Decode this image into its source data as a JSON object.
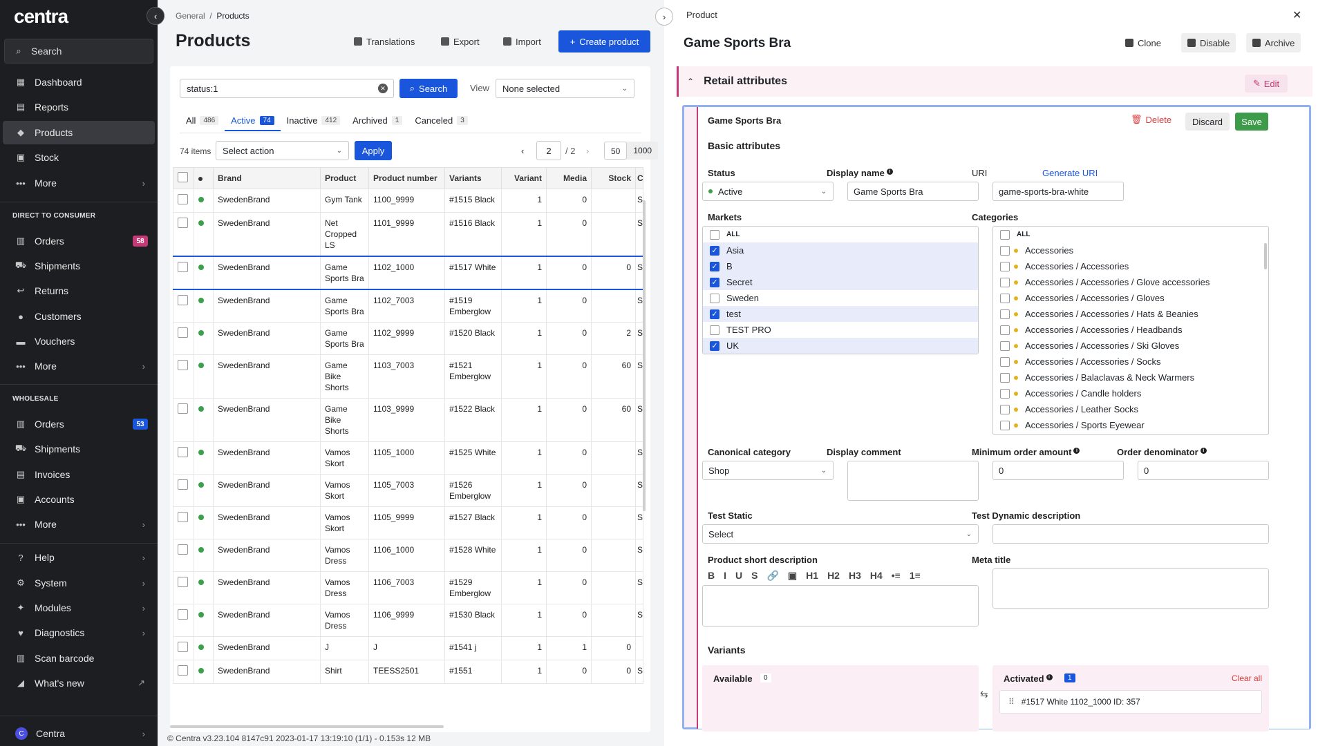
{
  "sidebar": {
    "logo": "centra",
    "search": "Search",
    "items": [
      {
        "label": "Dashboard",
        "icon": "dashboard-icon"
      },
      {
        "label": "Reports",
        "icon": "reports-icon"
      },
      {
        "label": "Products",
        "icon": "tag-icon"
      },
      {
        "label": "Stock",
        "icon": "box-icon"
      },
      {
        "label": "More",
        "icon": "ellipsis-icon"
      }
    ],
    "dtc_title": "DIRECT TO CONSUMER",
    "dtc_items": [
      {
        "label": "Orders",
        "badge": "58"
      },
      {
        "label": "Shipments"
      },
      {
        "label": "Returns"
      },
      {
        "label": "Customers"
      },
      {
        "label": "Vouchers"
      },
      {
        "label": "More"
      }
    ],
    "wholesale_title": "WHOLESALE",
    "wholesale_items": [
      {
        "label": "Orders",
        "badge": "53"
      },
      {
        "label": "Shipments"
      },
      {
        "label": "Invoices"
      },
      {
        "label": "Accounts"
      },
      {
        "label": "More"
      }
    ],
    "bottom_items": [
      {
        "label": "Help"
      },
      {
        "label": "System"
      },
      {
        "label": "Modules"
      },
      {
        "label": "Diagnostics"
      },
      {
        "label": "Scan barcode"
      },
      {
        "label": "What's new"
      }
    ],
    "account": {
      "initial": "C",
      "label": "Centra"
    },
    "colors": {
      "orders_badge": "#c33a77",
      "wholesale_badge": "#1a56db"
    }
  },
  "main": {
    "breadcrumb": {
      "parent": "General",
      "separator": "/",
      "current": "Products"
    },
    "title": "Products",
    "toolbar": {
      "translations": "Translations",
      "export": "Export",
      "import": "Import",
      "create": "Create product"
    },
    "search": {
      "value": "status:1",
      "button": "Search",
      "view_label": "View",
      "view_value": "None selected"
    },
    "tabs": [
      {
        "label": "All",
        "count": "486"
      },
      {
        "label": "Active",
        "count": "74"
      },
      {
        "label": "Inactive",
        "count": "412"
      },
      {
        "label": "Archived",
        "count": "1"
      },
      {
        "label": "Canceled",
        "count": "3"
      }
    ],
    "items_count": "74 items",
    "action_placeholder": "Select action",
    "apply": "Apply",
    "pagination": {
      "page": "2",
      "total": "/ 2"
    },
    "per_page": [
      "50",
      "1000"
    ],
    "columns": [
      "Brand",
      "Product",
      "Product number",
      "Variants",
      "Variant",
      "Media",
      "Stock",
      "C"
    ],
    "rows": [
      {
        "brand": "SwedenBrand",
        "product": "Gym Tank",
        "number": "1100_9999",
        "variants": "#1515 Black",
        "variant": "1",
        "media": "0",
        "stock": "",
        "c": "S"
      },
      {
        "brand": "SwedenBrand",
        "product": "Net Cropped LS",
        "number": "1101_9999",
        "variants": "#1516 Black",
        "variant": "1",
        "media": "0",
        "stock": "",
        "c": "S"
      },
      {
        "brand": "SwedenBrand",
        "product": "Game Sports Bra",
        "number": "1102_1000",
        "variants": "#1517 White",
        "variant": "1",
        "media": "0",
        "stock": "0",
        "c": "S"
      },
      {
        "brand": "SwedenBrand",
        "product": "Game Sports Bra",
        "number": "1102_7003",
        "variants": "#1519 Emberglow",
        "variant": "1",
        "media": "0",
        "stock": "",
        "c": "S"
      },
      {
        "brand": "SwedenBrand",
        "product": "Game Sports Bra",
        "number": "1102_9999",
        "variants": "#1520 Black",
        "variant": "1",
        "media": "0",
        "stock": "2",
        "c": "S"
      },
      {
        "brand": "SwedenBrand",
        "product": "Game Bike Shorts",
        "number": "1103_7003",
        "variants": "#1521 Emberglow",
        "variant": "1",
        "media": "0",
        "stock": "60",
        "c": "S"
      },
      {
        "brand": "SwedenBrand",
        "product": "Game Bike Shorts",
        "number": "1103_9999",
        "variants": "#1522 Black",
        "variant": "1",
        "media": "0",
        "stock": "60",
        "c": "S"
      },
      {
        "brand": "SwedenBrand",
        "product": "Vamos Skort",
        "number": "1105_1000",
        "variants": "#1525 White",
        "variant": "1",
        "media": "0",
        "stock": "",
        "c": "S"
      },
      {
        "brand": "SwedenBrand",
        "product": "Vamos Skort",
        "number": "1105_7003",
        "variants": "#1526 Emberglow",
        "variant": "1",
        "media": "0",
        "stock": "",
        "c": "S"
      },
      {
        "brand": "SwedenBrand",
        "product": "Vamos Skort",
        "number": "1105_9999",
        "variants": "#1527 Black",
        "variant": "1",
        "media": "0",
        "stock": "",
        "c": "S"
      },
      {
        "brand": "SwedenBrand",
        "product": "Vamos Dress",
        "number": "1106_1000",
        "variants": "#1528 White",
        "variant": "1",
        "media": "0",
        "stock": "",
        "c": "S"
      },
      {
        "brand": "SwedenBrand",
        "product": "Vamos Dress",
        "number": "1106_7003",
        "variants": "#1529 Emberglow",
        "variant": "1",
        "media": "0",
        "stock": "",
        "c": "S"
      },
      {
        "brand": "SwedenBrand",
        "product": "Vamos Dress",
        "number": "1106_9999",
        "variants": "#1530 Black",
        "variant": "1",
        "media": "0",
        "stock": "",
        "c": "S"
      },
      {
        "brand": "SwedenBrand",
        "product": "J",
        "number": "J",
        "variants": "#1541 j",
        "variant": "1",
        "media": "1",
        "stock": "0",
        "c": ""
      },
      {
        "brand": "SwedenBrand",
        "product": "Shirt",
        "number": "TEESS2501",
        "variants": "#1551",
        "variant": "1",
        "media": "0",
        "stock": "0",
        "c": "S"
      }
    ],
    "footer": "© Centra v3.23.104 8147c91 2023-01-17 13:19:10 (1/1) - 0.153s 12 MB"
  },
  "detail": {
    "header": "Product",
    "title": "Game Sports Bra",
    "actions": {
      "clone": "Clone",
      "disable": "Disable",
      "archive": "Archive"
    },
    "section": {
      "title": "Retail attributes",
      "edit": "Edit"
    },
    "form": {
      "name": "Game Sports Bra",
      "delete": "Delete",
      "discard": "Discard",
      "save": "Save",
      "basic_title": "Basic attributes",
      "status_label": "Status",
      "status_value": "Active",
      "display_name_label": "Display name",
      "display_name_value": "Game Sports Bra",
      "uri_label": "URI",
      "generate_uri": "Generate URI",
      "uri_value": "game-sports-bra-white",
      "markets_label": "Markets",
      "markets_all": "ALL",
      "markets": [
        {
          "label": "Asia",
          "checked": true
        },
        {
          "label": "B",
          "checked": true
        },
        {
          "label": "Secret",
          "checked": true
        },
        {
          "label": "Sweden",
          "checked": false
        },
        {
          "label": "test",
          "checked": true
        },
        {
          "label": "TEST PRO",
          "checked": false
        },
        {
          "label": "UK",
          "checked": true
        }
      ],
      "categories_label": "Categories",
      "categories_all": "ALL",
      "categories": [
        "Accessories",
        "Accessories / Accessories",
        "Accessories / Accessories / Glove accessories",
        "Accessories / Accessories / Gloves",
        "Accessories / Accessories / Hats & Beanies",
        "Accessories / Accessories / Headbands",
        "Accessories / Accessories / Ski Gloves",
        "Accessories / Accessories / Socks",
        "Accessories / Balaclavas & Neck Warmers",
        "Accessories / Candle holders",
        "Accessories / Leather Socks",
        "Accessories / Sports Eyewear"
      ],
      "canonical_label": "Canonical category",
      "canonical_value": "Shop",
      "display_comment_label": "Display comment",
      "min_order_label": "Minimum order amount",
      "min_order_value": "0",
      "order_denom_label": "Order denominator",
      "order_denom_value": "0",
      "test_static_label": "Test Static",
      "test_static_value": "Select",
      "test_dynamic_label": "Test Dynamic description",
      "short_desc_label": "Product short description",
      "rte_buttons": [
        "B",
        "I",
        "U",
        "S",
        "🔗",
        "▣",
        "H1",
        "H2",
        "H3",
        "H4",
        "•≡",
        "1≡"
      ],
      "meta_title_label": "Meta title",
      "variants_title": "Variants",
      "available_label": "Available",
      "available_count": "0",
      "activated_label": "Activated",
      "activated_count": "1",
      "clear_all": "Clear all",
      "activated_item": "#1517 White 1102_1000 ID: 357"
    }
  }
}
